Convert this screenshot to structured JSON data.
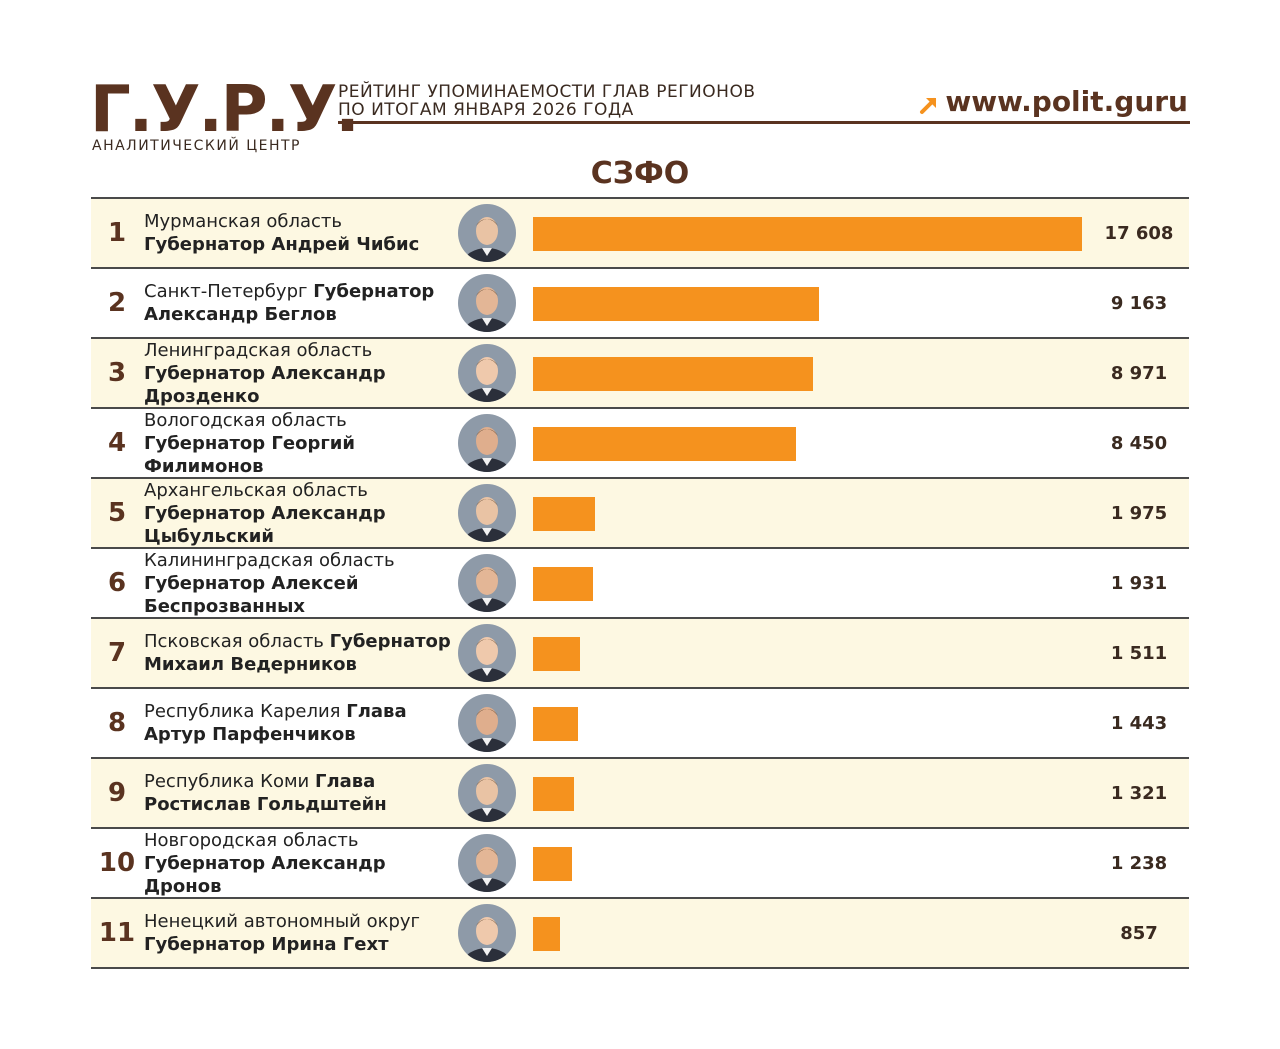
{
  "header": {
    "logo": "Г.У.Р.У.",
    "logo_subtitle": "АНАЛИТИЧЕСКИЙ ЦЕНТР",
    "title_line1": "РЕЙТИНГ УПОМИНАЕМОСТИ ГЛАВ РЕГИОНОВ",
    "title_line2": "ПО ИТОГАМ ЯНВАРЯ 2026 ГОДА",
    "site": "www.polit.guru"
  },
  "chart_data": {
    "type": "bar",
    "title": "СЗФО",
    "xlim": [
      0,
      17608
    ],
    "rows": [
      {
        "rank": "1",
        "region": "Мурманская область",
        "post": "Губернатор Андрей Чибис",
        "value": 17608,
        "value_label": "17 608"
      },
      {
        "rank": "2",
        "region": "Санкт-Петербург",
        "post": "Губернатор Александр Беглов",
        "value": 9163,
        "value_label": "9 163"
      },
      {
        "rank": "3",
        "region": "Ленинградская область",
        "post": "Губернатор Александр Дрозденко",
        "value": 8971,
        "value_label": "8 971"
      },
      {
        "rank": "4",
        "region": "Вологодская область",
        "post": "Губернатор Георгий Филимонов",
        "value": 8450,
        "value_label": "8 450"
      },
      {
        "rank": "5",
        "region": "Архангельская область",
        "post": "Губернатор Александр Цыбульский",
        "value": 1975,
        "value_label": "1 975"
      },
      {
        "rank": "6",
        "region": "Калининградская область",
        "post": "Губернатор Алексей Беспрозванных",
        "value": 1931,
        "value_label": "1 931"
      },
      {
        "rank": "7",
        "region": "Псковская область",
        "post": "Губернатор Михаил Ведерников",
        "value": 1511,
        "value_label": "1 511"
      },
      {
        "rank": "8",
        "region": "Республика Карелия",
        "post": "Глава Артур Парфенчиков",
        "value": 1443,
        "value_label": "1 443"
      },
      {
        "rank": "9",
        "region": "Республика Коми",
        "post": "Глава Ростислав Гольдштейн",
        "value": 1321,
        "value_label": "1 321"
      },
      {
        "rank": "10",
        "region": "Новгородская область",
        "post": "Губернатор Александр Дронов",
        "value": 1238,
        "value_label": "1 238"
      },
      {
        "rank": "11",
        "region": "Ненецкий автономный округ",
        "post": "Губернатор Ирина Гехт",
        "value": 857,
        "value_label": "857"
      }
    ]
  },
  "colors": {
    "bar": "#f5921e",
    "brand": "#5a3320",
    "row_shade": "#fdf8e2"
  },
  "icons": {
    "site_arrow": "arrow-up-right-icon"
  }
}
